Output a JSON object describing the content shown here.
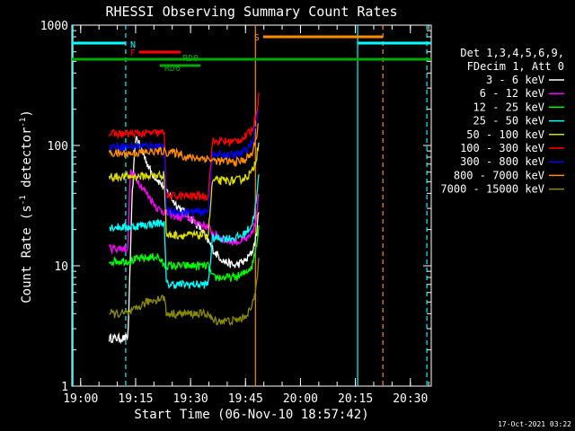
{
  "chart_data": {
    "type": "line",
    "title": "RHESSI Observing Summary Count Rates",
    "xlabel": "Start Time (06-Nov-10 18:57:42)",
    "ylabel": "Count Rate (s⁻¹ detector⁻¹)",
    "ylabel_main": "Count Rate (s",
    "ylabel_sup1": "-1",
    "ylabel_mid": " detector",
    "ylabel_sup2": "-1",
    "ylabel_end": ")",
    "yscale": "log",
    "xlim": [
      18.96,
      20.595
    ],
    "ylim": [
      1,
      1000
    ],
    "x_ticks": [
      {
        "t": 19.0,
        "label": "19:00"
      },
      {
        "t": 19.25,
        "label": "19:15"
      },
      {
        "t": 19.5,
        "label": "19:30"
      },
      {
        "t": 19.75,
        "label": "19:45"
      },
      {
        "t": 20.0,
        "label": "20:00"
      },
      {
        "t": 20.25,
        "label": "20:15"
      },
      {
        "t": 20.5,
        "label": "20:30"
      }
    ],
    "y_ticks": [
      {
        "v": 1,
        "label": "1"
      },
      {
        "v": 10,
        "label": "10"
      },
      {
        "v": 100,
        "label": "100"
      },
      {
        "v": 1000,
        "label": "1000"
      }
    ],
    "legend": {
      "header": [
        "Det 1,3,4,5,6,9,",
        "FDecim 1, Att 0"
      ],
      "position": "right"
    },
    "series": [
      {
        "name": "3 - 6 keV",
        "color": "#ffffff",
        "x": [
          19.13,
          19.215,
          19.225,
          19.235,
          19.25,
          19.28,
          19.32,
          19.38,
          19.43,
          19.47,
          19.52,
          19.55,
          19.58,
          19.61,
          19.63,
          19.65,
          19.7,
          19.75,
          19.78,
          19.8,
          19.81
        ],
        "y": [
          2.5,
          2.5,
          10,
          40,
          120,
          90,
          60,
          45,
          33,
          28,
          23,
          20,
          16,
          13,
          12,
          11,
          10,
          11,
          13,
          18,
          30
        ]
      },
      {
        "name": "6 - 12 keV",
        "color": "#ff00ff",
        "x": [
          19.13,
          19.215,
          19.225,
          19.25,
          19.28,
          19.31,
          19.35,
          19.4,
          19.46,
          19.47,
          19.53,
          19.58,
          19.61,
          19.64,
          19.68,
          19.73,
          19.77,
          19.8,
          19.81
        ],
        "y": [
          14,
          14,
          60,
          55,
          45,
          38,
          30,
          27,
          25,
          26,
          23,
          21,
          18,
          17,
          16,
          16,
          17,
          24,
          40
        ]
      },
      {
        "name": "12 - 25 keV",
        "color": "#00ff00",
        "x": [
          19.13,
          19.22,
          19.28,
          19.35,
          19.38,
          19.46,
          19.47,
          19.58,
          19.6,
          19.7,
          19.74,
          19.78,
          19.8,
          19.81
        ],
        "y": [
          11,
          11,
          11.5,
          12,
          10,
          10,
          10,
          10,
          8,
          8,
          8.5,
          10,
          15,
          22
        ]
      },
      {
        "name": "25 - 50 keV",
        "color": "#00ffff",
        "x": [
          19.13,
          19.22,
          19.3,
          19.38,
          19.39,
          19.46,
          19.47,
          19.58,
          19.6,
          19.7,
          19.74,
          19.78,
          19.8,
          19.81
        ],
        "y": [
          21,
          21,
          22,
          23,
          7,
          7,
          7,
          7,
          17,
          17,
          18,
          22,
          35,
          55
        ]
      },
      {
        "name": "50 - 100 keV",
        "color": "#dddd00",
        "x": [
          19.13,
          19.22,
          19.3,
          19.38,
          19.39,
          19.46,
          19.47,
          19.58,
          19.6,
          19.7,
          19.74,
          19.78,
          19.8,
          19.81
        ],
        "y": [
          55,
          55,
          56,
          57,
          18,
          18,
          18,
          18,
          51,
          51,
          53,
          60,
          80,
          110
        ]
      },
      {
        "name": "100 - 300 keV",
        "color": "#ff0000",
        "x": [
          19.13,
          19.22,
          19.3,
          19.38,
          19.39,
          19.46,
          19.47,
          19.58,
          19.6,
          19.7,
          19.74,
          19.78,
          19.8,
          19.81
        ],
        "y": [
          125,
          125,
          126,
          128,
          38,
          38,
          38,
          38,
          108,
          108,
          115,
          135,
          190,
          260
        ]
      },
      {
        "name": "300 - 800 keV",
        "color": "#0000ff",
        "x": [
          19.13,
          19.22,
          19.3,
          19.38,
          19.39,
          19.46,
          19.47,
          19.58,
          19.6,
          19.7,
          19.74,
          19.78,
          19.8,
          19.81
        ],
        "y": [
          98,
          98,
          99,
          100,
          28,
          28,
          28,
          28,
          83,
          83,
          88,
          105,
          150,
          210
        ]
      },
      {
        "name": "800 - 7000 keV",
        "color": "#ff8c00",
        "x": [
          19.13,
          19.22,
          19.3,
          19.38,
          19.39,
          19.46,
          19.47,
          19.58,
          19.6,
          19.7,
          19.74,
          19.78,
          19.8,
          19.81
        ],
        "y": [
          86,
          86,
          88,
          90,
          88,
          86,
          80,
          78,
          75,
          73,
          75,
          85,
          120,
          160
        ]
      },
      {
        "name": "7000 - 15000 keV",
        "color": "#8b8b00",
        "x": [
          19.13,
          19.22,
          19.3,
          19.38,
          19.39,
          19.46,
          19.47,
          19.58,
          19.6,
          19.7,
          19.74,
          19.78,
          19.8,
          19.81
        ],
        "y": [
          4,
          4,
          5,
          5.5,
          4,
          4,
          4,
          4,
          3.5,
          3.5,
          3.7,
          4.5,
          7,
          12
        ]
      }
    ],
    "annotations": [
      {
        "label": "N",
        "color": "#00ffff",
        "x1": 18.96,
        "x2": 19.205,
        "level": "high"
      },
      {
        "label": "F",
        "color": "#ff0000",
        "x1": 19.265,
        "x2": 19.455,
        "level": "mid"
      },
      {
        "label": "RD0",
        "color": "#00aa00",
        "x1": 19.44,
        "x2": 19.56,
        "level": "rd0"
      },
      {
        "label": "RD6",
        "color": "#00aa00",
        "x1": 19.36,
        "x2": 19.545,
        "level": "rd6"
      },
      {
        "label": "S",
        "color": "#ff8c00",
        "x1": 19.83,
        "x2": 20.375,
        "level": "top"
      }
    ],
    "segments": [
      {
        "name": "n-bar-2",
        "color": "#00ffff",
        "x1": 20.26,
        "x2": 20.595,
        "level": "high"
      },
      {
        "name": "saa-bar-a",
        "color": "#00aa00",
        "x1": 18.96,
        "x2": 19.445,
        "level": "low"
      },
      {
        "name": "saa-bar-b",
        "color": "#00aa00",
        "x1": 19.56,
        "x2": 20.595,
        "level": "low"
      }
    ],
    "vlines": [
      {
        "name": "night-start-1",
        "t": 18.965,
        "color": "#00ffff",
        "style": "solid"
      },
      {
        "name": "night-end-1",
        "t": 19.205,
        "color": "#00ffff",
        "style": "dashed"
      },
      {
        "name": "saa-start",
        "t": 19.795,
        "color": "#ff8c00",
        "style": "solid"
      },
      {
        "name": "night-start-2",
        "t": 20.26,
        "color": "#00ffff",
        "style": "solid"
      },
      {
        "name": "saa-end",
        "t": 20.375,
        "color": "#ff8c00",
        "style": "dashed"
      },
      {
        "name": "night-end-2",
        "t": 20.575,
        "color": "#00ffff",
        "style": "dashed"
      }
    ]
  },
  "footer": {
    "date": "17-Oct-2021 03:22"
  }
}
